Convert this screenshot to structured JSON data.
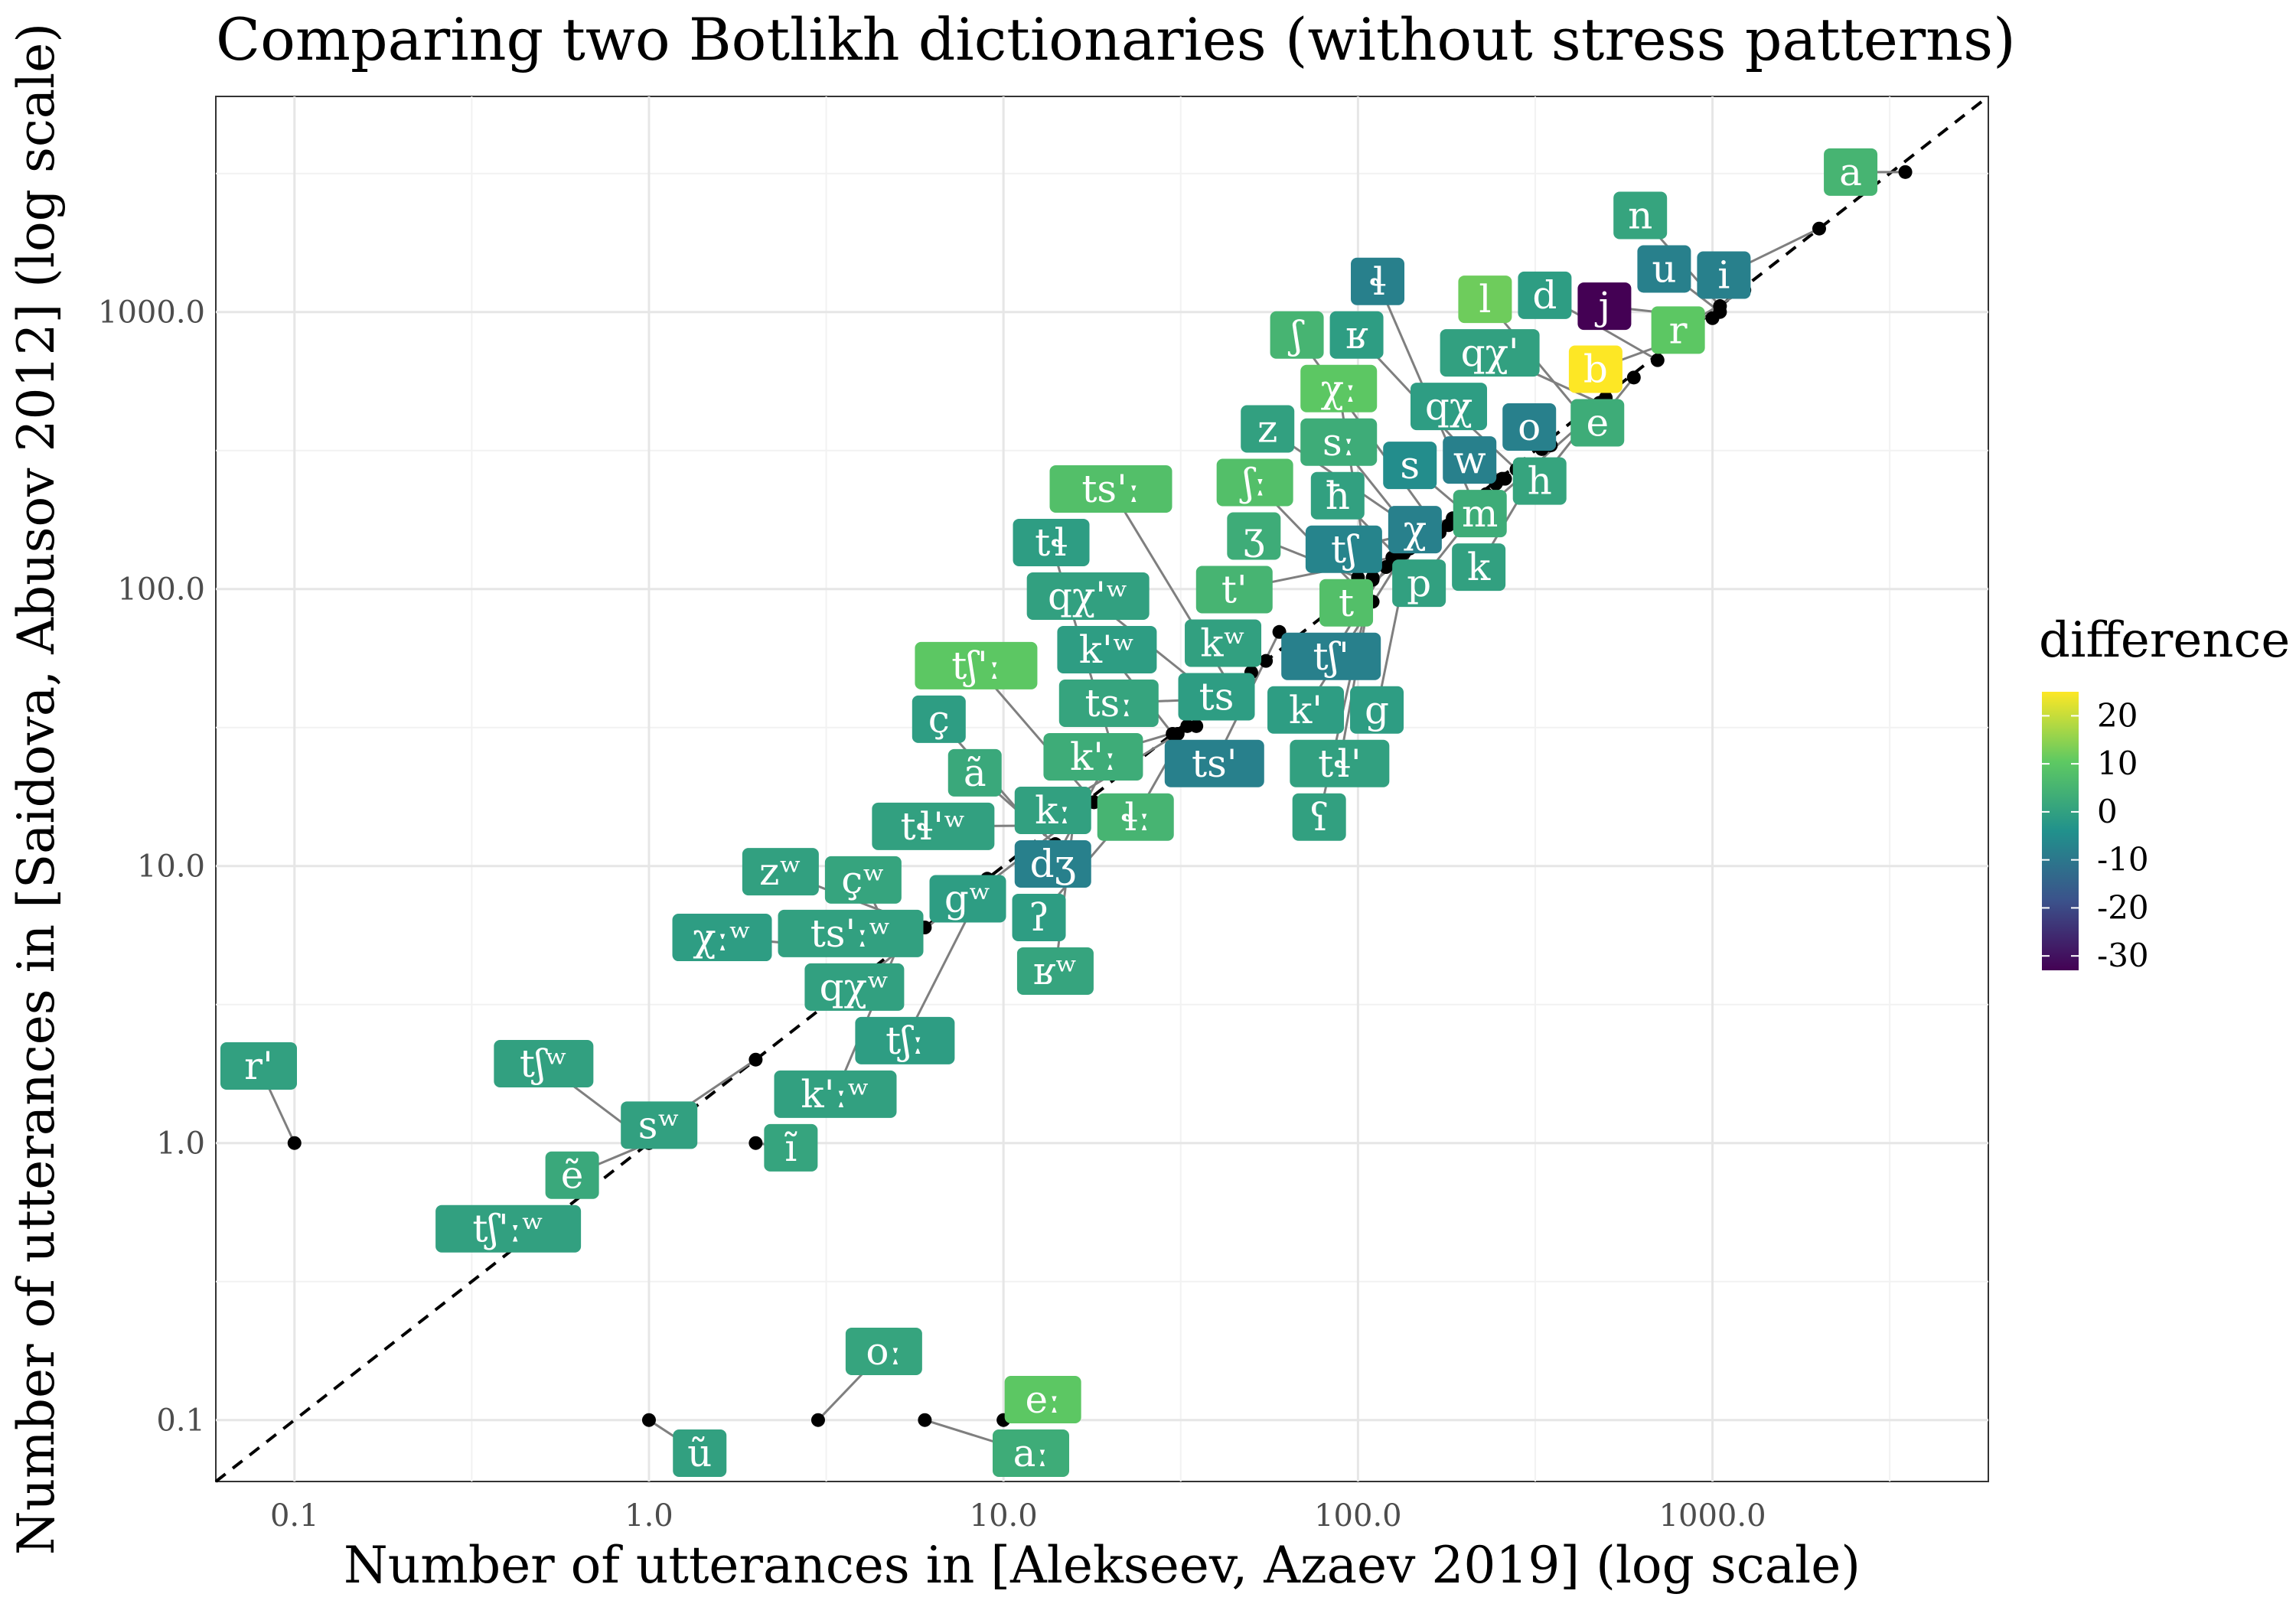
{
  "chart_data": {
    "type": "scatter",
    "title": "Comparing two Botlikh dictionaries (without stress patterns)",
    "xlabel": "Number of utterances in [Alekseev, Azaev 2019] (log scale)",
    "ylabel": "Number of utterances in [Saidova, Abusov 2012] (log scale)",
    "x_scale": "log",
    "y_scale": "log",
    "xlim": [
      0.06,
      6000
    ],
    "ylim": [
      0.06,
      6000
    ],
    "x_ticks": [
      "0.1",
      "1.0",
      "10.0",
      "100.0",
      "1000.0"
    ],
    "y_ticks": [
      "0.1",
      "1.0",
      "10.0",
      "100.0",
      "1000.0"
    ],
    "grid": true,
    "reference_line": "y = x (dashed)",
    "legend": {
      "title": "difference",
      "type": "colorbar",
      "position": "right",
      "ticks": [
        "20",
        "10",
        "0",
        "-10",
        "-20",
        "-30"
      ],
      "range": [
        -33,
        25
      ],
      "colors": [
        "#440154",
        "#3b528b",
        "#21918c",
        "#5ec962",
        "#fde725"
      ]
    },
    "points": [
      {
        "label": "a",
        "x": 3500,
        "y": 3200,
        "diff": 5
      },
      {
        "label": "i",
        "x": 2000,
        "y": 2000,
        "diff": -8
      },
      {
        "label": "n",
        "x": 1050,
        "y": 1050,
        "diff": 1
      },
      {
        "label": "r",
        "x": 1230,
        "y": 1200,
        "diff": 10
      },
      {
        "label": "j",
        "x": 1000,
        "y": 950,
        "diff": -33
      },
      {
        "label": "u",
        "x": 1050,
        "y": 1000,
        "diff": -8
      },
      {
        "label": "b",
        "x": 850,
        "y": 820,
        "diff": 25
      },
      {
        "label": "d",
        "x": 700,
        "y": 670,
        "diff": -1
      },
      {
        "label": "e",
        "x": 600,
        "y": 580,
        "diff": 3
      },
      {
        "label": "tʃ",
        "x": 180,
        "y": 170,
        "diff": -7
      },
      {
        "label": "s",
        "x": 200,
        "y": 190,
        "diff": -5
      },
      {
        "label": "h",
        "x": 500,
        "y": 490,
        "diff": 1
      },
      {
        "label": "qχ'",
        "x": 480,
        "y": 470,
        "diff": 0
      },
      {
        "label": "w",
        "x": 260,
        "y": 250,
        "diff": -8
      },
      {
        "label": "m",
        "x": 470,
        "y": 440,
        "diff": 3
      },
      {
        "label": "l",
        "x": 430,
        "y": 420,
        "diff": 12
      },
      {
        "label": "ʕ",
        "x": 110,
        "y": 110,
        "diff": 0
      },
      {
        "label": "z",
        "x": 160,
        "y": 150,
        "diff": 0
      },
      {
        "label": "o",
        "x": 330,
        "y": 320,
        "diff": -8
      },
      {
        "label": "k",
        "x": 350,
        "y": 330,
        "diff": 0
      },
      {
        "label": "ʃ",
        "x": 170,
        "y": 160,
        "diff": 5
      },
      {
        "label": "tʃ'",
        "x": 120,
        "y": 120,
        "diff": -8
      },
      {
        "label": "t",
        "x": 230,
        "y": 220,
        "diff": 8
      },
      {
        "label": "ɬ",
        "x": 210,
        "y": 210,
        "diff": -8
      },
      {
        "label": "χ",
        "x": 185,
        "y": 180,
        "diff": -8
      },
      {
        "label": "t'",
        "x": 125,
        "y": 130,
        "diff": 5
      },
      {
        "label": "kʷ",
        "x": 55,
        "y": 55,
        "diff": 0
      },
      {
        "label": "ts'",
        "x": 60,
        "y": 70,
        "diff": -8
      },
      {
        "label": "ʃː",
        "x": 100,
        "y": 100,
        "diff": 8
      },
      {
        "label": "tɬ'",
        "x": 110,
        "y": 108,
        "diff": 0
      },
      {
        "label": "sː",
        "x": 150,
        "y": 145,
        "diff": 3
      },
      {
        "label": "qχ",
        "x": 280,
        "y": 270,
        "diff": -1
      },
      {
        "label": "p",
        "x": 255,
        "y": 250,
        "diff": 0
      },
      {
        "label": "qχ'ʷ",
        "x": 40,
        "y": 40,
        "diff": 0
      },
      {
        "label": "ts",
        "x": 50,
        "y": 50,
        "diff": -1
      },
      {
        "label": "tsː",
        "x": 38,
        "y": 40,
        "diff": 1
      },
      {
        "label": "ʒ",
        "x": 100,
        "y": 110,
        "diff": 3
      },
      {
        "label": "g",
        "x": 140,
        "y": 140,
        "diff": -1
      },
      {
        "label": "ʁ",
        "x": 245,
        "y": 240,
        "diff": -1
      },
      {
        "label": "ħ",
        "x": 130,
        "y": 130,
        "diff": 0
      },
      {
        "label": "k'",
        "x": 135,
        "y": 135,
        "diff": -1
      },
      {
        "label": "ts'ː",
        "x": 44,
        "y": 44,
        "diff": 8
      },
      {
        "label": "dʒ",
        "x": 20,
        "y": 25,
        "diff": -8
      },
      {
        "label": "kː",
        "x": 31,
        "y": 30,
        "diff": 0
      },
      {
        "label": "tɬ",
        "x": 21,
        "y": 23,
        "diff": -1
      },
      {
        "label": "ɬː",
        "x": 33,
        "y": 32,
        "diff": 5
      },
      {
        "label": "k'ː",
        "x": 35,
        "y": 32,
        "diff": 3
      },
      {
        "label": "χː",
        "x": 110,
        "y": 90,
        "diff": 10
      },
      {
        "label": "gʷ",
        "x": 18,
        "y": 17,
        "diff": -1
      },
      {
        "label": "ç",
        "x": 12,
        "y": 14,
        "diff": -1
      },
      {
        "label": "ʁʷ",
        "x": 16,
        "y": 17,
        "diff": 1
      },
      {
        "label": "ʔ",
        "x": 22,
        "y": 15,
        "diff": -1
      },
      {
        "label": "k'ʷ",
        "x": 30,
        "y": 30,
        "diff": -1
      },
      {
        "label": "tʃː",
        "x": 9,
        "y": 9,
        "diff": -1
      },
      {
        "label": "χːʷ",
        "x": 4,
        "y": 5,
        "diff": -1
      },
      {
        "label": "çʷ",
        "x": 5,
        "y": 5,
        "diff": 1
      },
      {
        "label": "qχʷ",
        "x": 8,
        "y": 8,
        "diff": 0
      },
      {
        "label": "tʃ'ː",
        "x": 18,
        "y": 17,
        "diff": 10
      },
      {
        "label": "k'ːʷ",
        "x": 5,
        "y": 5,
        "diff": 0
      },
      {
        "label": "zʷ",
        "x": 6,
        "y": 6,
        "diff": 0
      },
      {
        "label": "ã",
        "x": 14,
        "y": 12,
        "diff": 2
      },
      {
        "label": "sʷ",
        "x": 2,
        "y": 2,
        "diff": 0
      },
      {
        "label": "tʃʷ",
        "x": 1,
        "y": 1,
        "diff": 0
      },
      {
        "label": "ts'ːʷ",
        "x": 5,
        "y": 5,
        "diff": 0
      },
      {
        "label": "tɬ'ʷ",
        "x": 14,
        "y": 14,
        "diff": 0
      },
      {
        "label": "r'",
        "x": 0.1,
        "y": 1,
        "diff": 0
      },
      {
        "label": "ẽ",
        "x": 1,
        "y": 1,
        "diff": 2
      },
      {
        "label": "ĩ",
        "x": 2,
        "y": 1,
        "diff": 1
      },
      {
        "label": "tʃ'ːʷ",
        "x": 0.5,
        "y": 0.5,
        "diff": 0
      },
      {
        "label": "ũ",
        "x": 1,
        "y": 0.1,
        "diff": 0
      },
      {
        "label": "oː",
        "x": 3,
        "y": 0.1,
        "diff": 1
      },
      {
        "label": "aː",
        "x": 6,
        "y": 0.1,
        "diff": 3
      },
      {
        "label": "eː",
        "x": 10,
        "y": 0.1,
        "diff": 10
      }
    ]
  }
}
